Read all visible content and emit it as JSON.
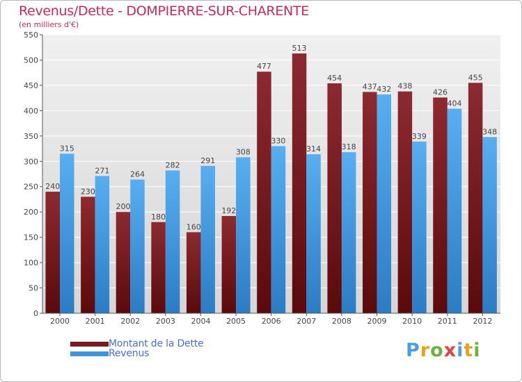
{
  "header": {
    "title": "Revenus/Dette - DOMPIERRE-SUR-CHARENTE",
    "subtitle": "(en milliers d'€)"
  },
  "chart_data": {
    "type": "bar",
    "title": "Revenus/Dette - DOMPIERRE-SUR-CHARENTE",
    "subtitle": "(en milliers d'€)",
    "categories": [
      "2000",
      "2001",
      "2002",
      "2003",
      "2004",
      "2005",
      "2006",
      "2007",
      "2008",
      "2009",
      "2010",
      "2011",
      "2012"
    ],
    "series": [
      {
        "name": "Montant de la Dette",
        "color": "#7a1a1e",
        "values": [
          240,
          230,
          200,
          180,
          160,
          192,
          477,
          513,
          454,
          437,
          438,
          426,
          455
        ]
      },
      {
        "name": "Revenus",
        "color": "#3e95dd",
        "values": [
          315,
          271,
          264,
          282,
          291,
          308,
          330,
          314,
          318,
          432,
          339,
          404,
          348
        ]
      }
    ],
    "ylim": [
      0,
      550
    ],
    "yticks": [
      0,
      50,
      100,
      150,
      200,
      250,
      300,
      350,
      400,
      450,
      500,
      550
    ],
    "grid": true,
    "legend": "bottom-left"
  },
  "legend": {
    "debt_label": "Montant de la Dette",
    "revenue_label": "Revenus"
  },
  "logo": {
    "p": "P",
    "r": "r",
    "o": "o",
    "x": "x",
    "i1": "i",
    "t": "t",
    "i2": "i"
  }
}
